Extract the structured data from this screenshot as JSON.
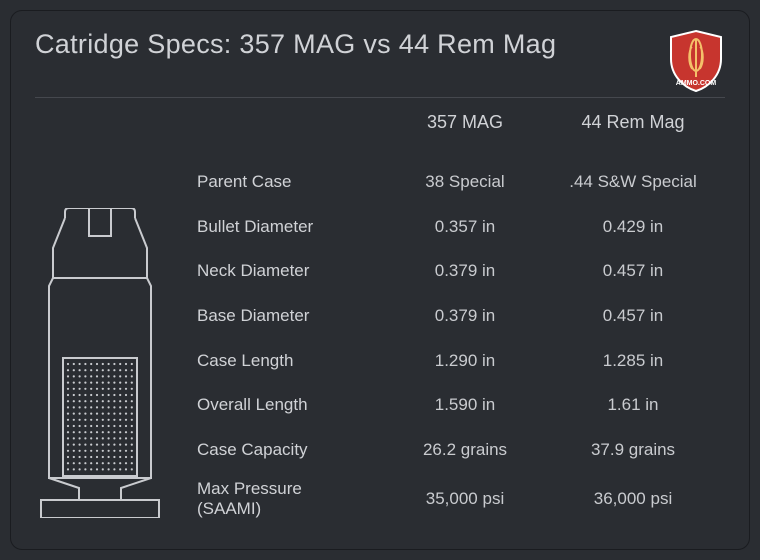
{
  "title": "Catridge Specs: 357 MAG vs 44 Rem Mag",
  "brand": {
    "name": "AMMO.COM",
    "shield_fill": "#c7352e",
    "shield_stroke": "#ffffff"
  },
  "colors": {
    "background": "#2a2d32",
    "card_border": "#1a1c20",
    "text_primary": "#d0d2d6",
    "text_secondary": "#c9cbcf",
    "divider": "#45484e",
    "cartridge_stroke": "#c9cbcf"
  },
  "table": {
    "columns": [
      "357 MAG",
      "44 Rem Mag"
    ],
    "rows": [
      {
        "label": "Parent Case",
        "values": [
          "38 Special",
          ".44 S&W Special"
        ]
      },
      {
        "label": "Bullet Diameter",
        "values": [
          "0.357 in",
          "0.429 in"
        ]
      },
      {
        "label": "Neck Diameter",
        "values": [
          "0.379 in",
          "0.457 in"
        ]
      },
      {
        "label": "Base Diameter",
        "values": [
          "0.379 in",
          "0.457 in"
        ]
      },
      {
        "label": "Case Length",
        "values": [
          "1.290 in",
          "1.285 in"
        ]
      },
      {
        "label": "Overall Length",
        "values": [
          "1.590 in",
          "1.61 in"
        ]
      },
      {
        "label": "Case Capacity",
        "values": [
          "26.2 grains",
          "37.9 grains"
        ]
      },
      {
        "label": "Max Pressure\n(SAAMI)",
        "values": [
          "35,000 psi",
          "36,000  psi"
        ]
      }
    ]
  },
  "typography": {
    "title_fontsize": 27,
    "header_fontsize": 18,
    "body_fontsize": 17
  },
  "cartridge": {
    "stroke_width": 2
  }
}
